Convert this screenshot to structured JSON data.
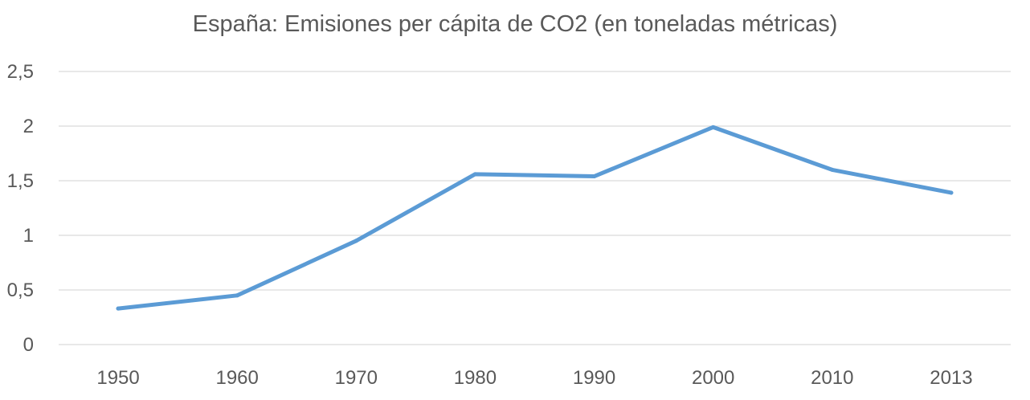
{
  "chart_data": {
    "type": "line",
    "title": "España: Emisiones per cápita de CO2 (en toneladas métricas)",
    "xlabel": "",
    "ylabel": "",
    "categories": [
      "1950",
      "1960",
      "1970",
      "1980",
      "1990",
      "2000",
      "2010",
      "2013"
    ],
    "series": [
      {
        "values": [
          0.33,
          0.45,
          0.95,
          1.56,
          1.54,
          1.99,
          1.6,
          1.39
        ],
        "color": "#5B9BD5"
      }
    ],
    "ylim": [
      0,
      2.5
    ],
    "yticks": [
      0,
      0.5,
      1,
      1.5,
      2,
      2.5
    ],
    "ytick_labels": [
      "0",
      "0,5",
      "1",
      "1,5",
      "2",
      "2,5"
    ],
    "grid": true,
    "legend": "none"
  }
}
